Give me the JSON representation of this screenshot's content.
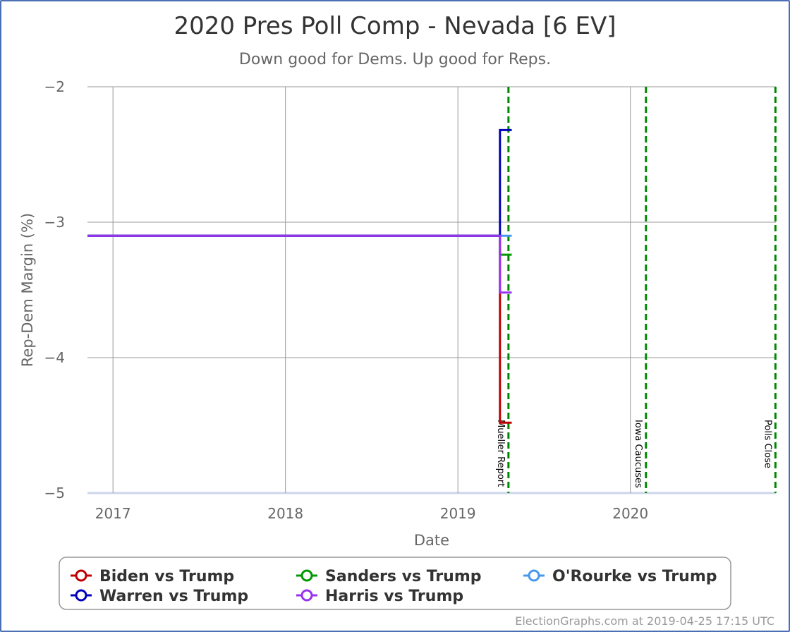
{
  "chart_data": {
    "type": "line",
    "title": "2020 Pres Poll Comp - Nevada [6 EV]",
    "subtitle": "Down good for Dems. Up good for Reps.",
    "xlabel": "Date",
    "ylabel": "Rep-Dem Margin (%)",
    "xlim": [
      "2016-11-08",
      "2020-11-04"
    ],
    "ylim": [
      -5,
      -2
    ],
    "y_inverted": true,
    "grid": true,
    "x_ticks": [
      {
        "date": "2017-01-01",
        "label": "2017"
      },
      {
        "date": "2018-01-01",
        "label": "2018"
      },
      {
        "date": "2019-01-01",
        "label": "2019"
      },
      {
        "date": "2020-01-01",
        "label": "2020"
      }
    ],
    "y_ticks": [
      {
        "value": -2,
        "label": "−2"
      },
      {
        "value": -3,
        "label": "−3"
      },
      {
        "value": -4,
        "label": "−4"
      },
      {
        "value": -5,
        "label": "−5"
      }
    ],
    "events": [
      {
        "date": "2019-04-18",
        "label": "Mueller Report"
      },
      {
        "date": "2020-02-03",
        "label": "Iowa Caucuses"
      },
      {
        "date": "2020-11-03",
        "label": "Polls Close"
      }
    ],
    "series": [
      {
        "name": "Biden vs Trump",
        "color": "#c00000",
        "points": [
          [
            "2016-11-08",
            -3.1
          ],
          [
            "2019-03-31",
            -3.1
          ],
          [
            "2019-03-31",
            -4.48
          ],
          [
            "2019-04-25",
            -4.48
          ]
        ]
      },
      {
        "name": "Sanders vs Trump",
        "color": "#009900",
        "points": [
          [
            "2016-11-08",
            -3.1
          ],
          [
            "2019-03-31",
            -3.1
          ],
          [
            "2019-03-31",
            -3.24
          ],
          [
            "2019-04-25",
            -3.24
          ]
        ]
      },
      {
        "name": "O'Rourke vs Trump",
        "color": "#4499ee",
        "points": [
          [
            "2016-11-08",
            -3.1
          ],
          [
            "2019-04-25",
            -3.1
          ]
        ]
      },
      {
        "name": "Warren vs Trump",
        "color": "#0000bb",
        "points": [
          [
            "2016-11-08",
            -3.1
          ],
          [
            "2019-03-31",
            -3.1
          ],
          [
            "2019-03-31",
            -2.32
          ],
          [
            "2019-04-25",
            -2.32
          ]
        ]
      },
      {
        "name": "Harris vs Trump",
        "color": "#9933ee",
        "points": [
          [
            "2016-11-08",
            -3.1
          ],
          [
            "2019-03-31",
            -3.1
          ],
          [
            "2019-03-31",
            -3.52
          ],
          [
            "2019-04-25",
            -3.52
          ]
        ]
      }
    ],
    "legend_position": "bottom"
  },
  "credit": "ElectionGraphs.com at 2019-04-25 17:15 UTC"
}
